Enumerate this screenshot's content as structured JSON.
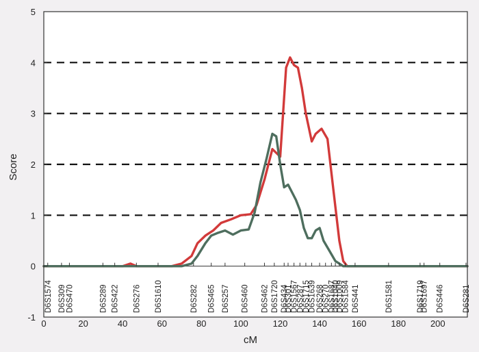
{
  "chart_data": {
    "type": "line",
    "title": "",
    "xlabel": "cM",
    "ylabel": "Score",
    "xlim": [
      0,
      215
    ],
    "ylim": [
      -1,
      5
    ],
    "x_ticks": [
      "0",
      "20",
      "40",
      "60",
      "80",
      "100",
      "120",
      "140",
      "160",
      "180",
      "200"
    ],
    "y_ticks": [
      "-1",
      "0",
      "1",
      "2",
      "3",
      "4",
      "5"
    ],
    "dashed_gridlines_y": [
      1,
      2,
      3,
      4
    ],
    "markers": [
      {
        "name": "D6S1574",
        "cM": 2
      },
      {
        "name": "D6S309",
        "cM": 9
      },
      {
        "name": "D6S470",
        "cM": 13
      },
      {
        "name": "D6S289",
        "cM": 30
      },
      {
        "name": "D6S422",
        "cM": 36
      },
      {
        "name": "D6S276",
        "cM": 47
      },
      {
        "name": "D6S1610",
        "cM": 58
      },
      {
        "name": "D6S282",
        "cM": 76
      },
      {
        "name": "D6S465",
        "cM": 85
      },
      {
        "name": "D6S257",
        "cM": 92
      },
      {
        "name": "D6S460",
        "cM": 102
      },
      {
        "name": "D6S462",
        "cM": 112
      },
      {
        "name": "D6S1720",
        "cM": 117
      },
      {
        "name": "D6S434",
        "cM": 122
      },
      {
        "name": "D6S301",
        "cM": 124
      },
      {
        "name": "D6S1567",
        "cM": 127
      },
      {
        "name": "D6S287",
        "cM": 130
      },
      {
        "name": "D6S1715",
        "cM": 133
      },
      {
        "name": "D6S1639",
        "cM": 136
      },
      {
        "name": "D6S268",
        "cM": 140
      },
      {
        "name": "D6S270",
        "cM": 143
      },
      {
        "name": "D6S1687",
        "cM": 146
      },
      {
        "name": "D6S1040",
        "cM": 148
      },
      {
        "name": "D6S1009",
        "cM": 150
      },
      {
        "name": "D6S1584",
        "cM": 153
      },
      {
        "name": "D6S441",
        "cM": 158
      },
      {
        "name": "D6S1581",
        "cM": 175
      },
      {
        "name": "D6S1719",
        "cM": 191
      },
      {
        "name": "D6S1697",
        "cM": 193
      },
      {
        "name": "D6S446",
        "cM": 201
      },
      {
        "name": "D6S281",
        "cM": 217
      }
    ],
    "series": [
      {
        "color": "#d23a3a",
        "x": [
          0,
          20,
          40,
          44,
          47,
          52,
          60,
          65,
          70,
          75,
          78,
          82,
          86,
          90,
          95,
          100,
          105,
          108,
          112,
          116,
          120,
          123,
          125,
          127,
          129,
          131,
          133,
          136,
          138,
          141,
          144,
          147,
          150,
          152,
          154,
          160,
          180,
          200,
          215
        ],
        "y": [
          0,
          0,
          0,
          0.05,
          0,
          0,
          0,
          0,
          0.05,
          0.2,
          0.45,
          0.6,
          0.7,
          0.85,
          0.92,
          1.0,
          1.02,
          1.2,
          1.7,
          2.3,
          2.15,
          3.9,
          4.1,
          3.95,
          3.9,
          3.5,
          3.0,
          2.45,
          2.6,
          2.7,
          2.5,
          1.5,
          0.5,
          0.1,
          0,
          0,
          0,
          0,
          0
        ]
      },
      {
        "color": "#4e6e5e",
        "x": [
          0,
          20,
          40,
          50,
          60,
          65,
          70,
          75,
          78,
          82,
          85,
          88,
          92,
          96,
          100,
          104,
          107,
          110,
          113,
          116,
          118,
          120,
          122,
          124,
          126,
          128,
          130,
          132,
          134,
          136,
          138,
          140,
          142,
          145,
          148,
          150,
          152,
          160,
          180,
          200,
          215
        ],
        "y": [
          0,
          0,
          0,
          0,
          0,
          0,
          0,
          0.05,
          0.2,
          0.45,
          0.6,
          0.65,
          0.7,
          0.62,
          0.7,
          0.72,
          1.05,
          1.65,
          2.1,
          2.6,
          2.55,
          2.0,
          1.55,
          1.6,
          1.45,
          1.3,
          1.1,
          0.75,
          0.55,
          0.55,
          0.7,
          0.75,
          0.5,
          0.3,
          0.1,
          0.05,
          0,
          0,
          0,
          0,
          0
        ]
      }
    ]
  }
}
